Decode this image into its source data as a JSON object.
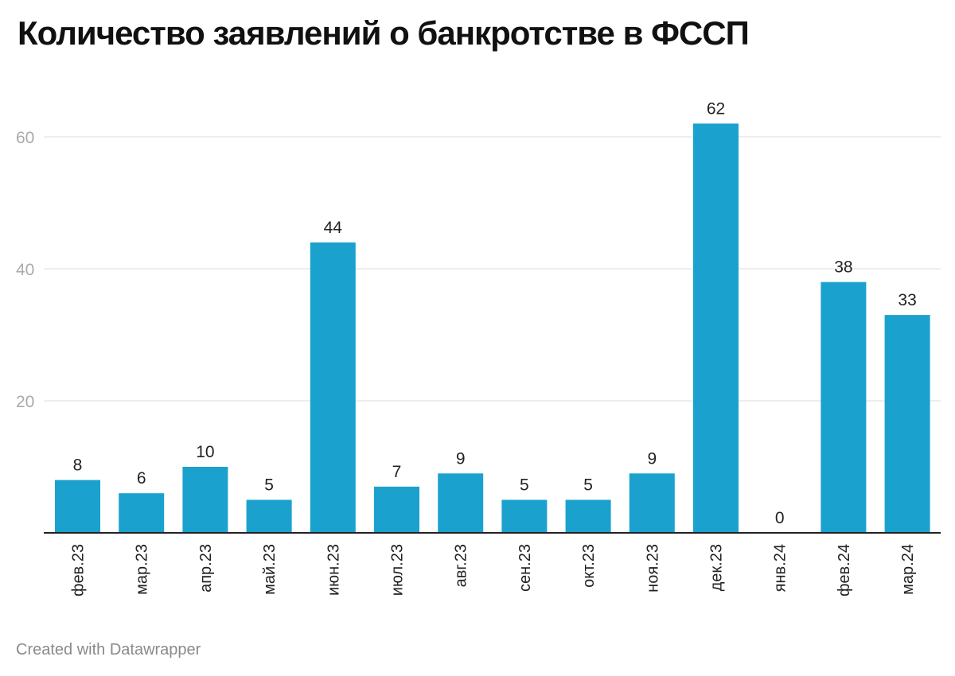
{
  "title": "Количество заявлений о банкротстве в ФССП",
  "footer": "Created with Datawrapper",
  "colors": {
    "bar": "#1ba1cd",
    "grid": "#dddddd",
    "axis": "#222222",
    "tick": "#aaaaaa",
    "text": "#222222"
  },
  "chart_data": {
    "type": "bar",
    "title": "Количество заявлений о банкротстве в ФССП",
    "xlabel": "",
    "ylabel": "",
    "categories": [
      "фев.23",
      "мар.23",
      "апр.23",
      "май.23",
      "июн.23",
      "июл.23",
      "авг.23",
      "сен.23",
      "окт.23",
      "ноя.23",
      "дек.23",
      "янв.24",
      "фев.24",
      "мар.24"
    ],
    "values": [
      8,
      6,
      10,
      5,
      44,
      7,
      9,
      5,
      5,
      9,
      62,
      0,
      38,
      33
    ],
    "yticks": [
      20,
      40,
      60
    ],
    "ylim": [
      0,
      60
    ],
    "grid": true,
    "data_labels": true
  }
}
